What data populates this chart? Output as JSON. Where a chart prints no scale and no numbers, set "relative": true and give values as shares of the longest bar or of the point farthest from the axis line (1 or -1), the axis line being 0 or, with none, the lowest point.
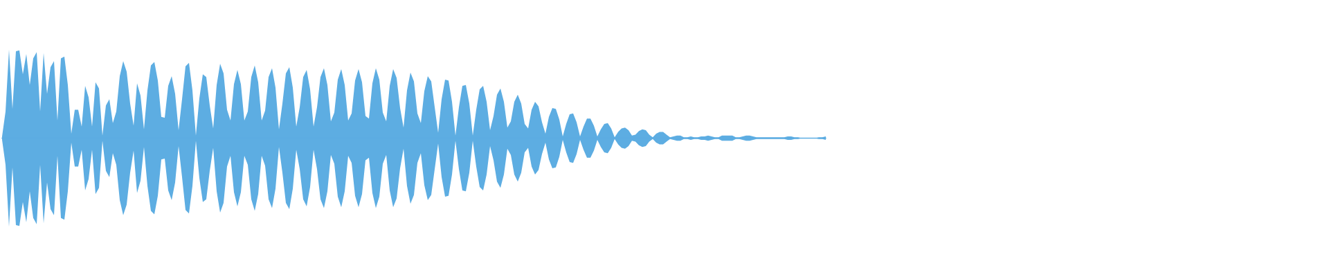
{
  "chart_data": {
    "type": "area",
    "relative": true,
    "categories": [
      null,
      null,
      null,
      null,
      null,
      null,
      null,
      null,
      null,
      null,
      null,
      null,
      null,
      null,
      null,
      null,
      null,
      null,
      null,
      null,
      null,
      null,
      null,
      null,
      null,
      null,
      null,
      null,
      null,
      null,
      null,
      null,
      null,
      null,
      null,
      null,
      null,
      null,
      null,
      null,
      null,
      null,
      null,
      null,
      null,
      null,
      null,
      null,
      null,
      null,
      null,
      null,
      null,
      null,
      null,
      null,
      null,
      null,
      null,
      null,
      null,
      null,
      null,
      null,
      null,
      null,
      null,
      null,
      null,
      null,
      null,
      null,
      null,
      null,
      null,
      null,
      null,
      null,
      null,
      null,
      null,
      null,
      null,
      null,
      null,
      null,
      null,
      null,
      null,
      null,
      null,
      null,
      null,
      null,
      null,
      null,
      null,
      null,
      null,
      null,
      null,
      null,
      null,
      null,
      null,
      null,
      null,
      null,
      null,
      null,
      null,
      null,
      null,
      null,
      null,
      null,
      null,
      null,
      null,
      null,
      null,
      null,
      null,
      null,
      null,
      null,
      null,
      null,
      null,
      null,
      null,
      null,
      null,
      null,
      null,
      null,
      null,
      null,
      null,
      null,
      null,
      null,
      null,
      null,
      null,
      null,
      null,
      null,
      null,
      null,
      null,
      null,
      null,
      null,
      null,
      null,
      null,
      null,
      null,
      null,
      null,
      null,
      null,
      null,
      null,
      null,
      null,
      null,
      null,
      null,
      null,
      null,
      null,
      null,
      null,
      null,
      null,
      null,
      null,
      null,
      null,
      null,
      null,
      null,
      null,
      null,
      null,
      null,
      null,
      null,
      null,
      null,
      null,
      null,
      null,
      null,
      null,
      null,
      null,
      null,
      null,
      null,
      null,
      null,
      null,
      null,
      null,
      null,
      null,
      null,
      null,
      null,
      null,
      null,
      null,
      null,
      null,
      null,
      null,
      null,
      null,
      null,
      null,
      null,
      null,
      null,
      null,
      null,
      null,
      null,
      null,
      null,
      null,
      null,
      null,
      null,
      null,
      null,
      null
    ],
    "series": [
      {
        "color": "#5dade2",
        "values": [
          0.02,
          0.3,
          1,
          0.33,
          0.98,
          0.99,
          0.72,
          0.95,
          0.6,
          0.9,
          0.97,
          0.3,
          0.96,
          0.5,
          0.8,
          0.87,
          0.2,
          0.9,
          0.92,
          0.6,
          0.05,
          0.32,
          0.32,
          0.13,
          0.59,
          0.46,
          0.13,
          0.63,
          0.56,
          0.03,
          0.37,
          0.44,
          0.17,
          0.3,
          0.7,
          0.87,
          0.75,
          0.39,
          0.14,
          0.62,
          0.48,
          0.1,
          0.54,
          0.82,
          0.86,
          0.65,
          0.24,
          0.23,
          0.59,
          0.7,
          0.5,
          0.09,
          0.44,
          0.81,
          0.85,
          0.54,
          0.03,
          0.45,
          0.72,
          0.69,
          0.37,
          0.11,
          0.6,
          0.84,
          0.73,
          0.32,
          0.2,
          0.61,
          0.77,
          0.61,
          0.2,
          0.3,
          0.69,
          0.82,
          0.63,
          0.2,
          0.31,
          0.69,
          0.79,
          0.57,
          0.1,
          0.39,
          0.73,
          0.8,
          0.57,
          0.13,
          0.35,
          0.69,
          0.77,
          0.55,
          0.13,
          0.35,
          0.69,
          0.79,
          0.6,
          0.19,
          0.29,
          0.66,
          0.78,
          0.6,
          0.2,
          0.28,
          0.65,
          0.78,
          0.63,
          0.25,
          0.22,
          0.62,
          0.79,
          0.66,
          0.29,
          0.19,
          0.59,
          0.78,
          0.68,
          0.34,
          0.12,
          0.54,
          0.74,
          0.64,
          0.28,
          0.17,
          0.53,
          0.7,
          0.64,
          0.35,
          0.06,
          0.44,
          0.66,
          0.65,
          0.41,
          0.03,
          0.35,
          0.59,
          0.6,
          0.39,
          0.03,
          0.32,
          0.55,
          0.59,
          0.41,
          0.09,
          0.25,
          0.49,
          0.56,
          0.41,
          0.12,
          0.19,
          0.41,
          0.49,
          0.39,
          0.16,
          0.11,
          0.32,
          0.41,
          0.36,
          0.18,
          0.05,
          0.24,
          0.34,
          0.33,
          0.21,
          0.02,
          0.16,
          0.27,
          0.28,
          0.18,
          0.02,
          0.13,
          0.22,
          0.22,
          0.14,
          0.02,
          0.1,
          0.16,
          0.17,
          0.11,
          0.01,
          0.07,
          0.11,
          0.12,
          0.09,
          0.03,
          0.04,
          0.08,
          0.1,
          0.09,
          0.04,
          0.01,
          0.05,
          0.07,
          0.07,
          0.04,
          0.01,
          0.02,
          0.03,
          0.03,
          0.01,
          0.01,
          0.02,
          0.01,
          0.01,
          0.02,
          0.02,
          0.03,
          0.02,
          0.01,
          0.01,
          0.03,
          0.03,
          0.03,
          0.03,
          0.01,
          0.01,
          0.02,
          0.03,
          0.03,
          0.02,
          0.01,
          0.01,
          0.01,
          0.01,
          0.01,
          0.01,
          0.01,
          0.01,
          0.01,
          0.02,
          0.02,
          0.01,
          0.01,
          0,
          0,
          0,
          0,
          0,
          0.01,
          0.01,
          0.02
        ]
      },
      {
        "color": "#5dade2",
        "values": [
          -0.02,
          -0.3,
          -1,
          -0.33,
          -0.98,
          -0.99,
          -0.72,
          -0.95,
          -0.6,
          -0.9,
          -0.97,
          -0.3,
          -0.96,
          -0.5,
          -0.8,
          -0.87,
          -0.2,
          -0.9,
          -0.92,
          -0.6,
          -0.05,
          -0.32,
          -0.32,
          -0.13,
          -0.59,
          -0.46,
          -0.13,
          -0.63,
          -0.56,
          -0.03,
          -0.37,
          -0.44,
          -0.17,
          -0.3,
          -0.7,
          -0.87,
          -0.75,
          -0.39,
          -0.14,
          -0.62,
          -0.48,
          -0.1,
          -0.54,
          -0.82,
          -0.86,
          -0.65,
          -0.24,
          -0.23,
          -0.59,
          -0.7,
          -0.5,
          -0.09,
          -0.44,
          -0.81,
          -0.85,
          -0.54,
          -0.03,
          -0.45,
          -0.72,
          -0.69,
          -0.37,
          -0.11,
          -0.6,
          -0.84,
          -0.73,
          -0.32,
          -0.2,
          -0.61,
          -0.77,
          -0.61,
          -0.2,
          -0.3,
          -0.69,
          -0.82,
          -0.63,
          -0.2,
          -0.31,
          -0.69,
          -0.79,
          -0.57,
          -0.1,
          -0.39,
          -0.73,
          -0.8,
          -0.57,
          -0.13,
          -0.35,
          -0.69,
          -0.77,
          -0.55,
          -0.13,
          -0.35,
          -0.69,
          -0.79,
          -0.6,
          -0.19,
          -0.29,
          -0.66,
          -0.78,
          -0.6,
          -0.2,
          -0.28,
          -0.65,
          -0.78,
          -0.63,
          -0.25,
          -0.22,
          -0.62,
          -0.79,
          -0.66,
          -0.29,
          -0.19,
          -0.59,
          -0.78,
          -0.68,
          -0.34,
          -0.12,
          -0.54,
          -0.74,
          -0.64,
          -0.28,
          -0.17,
          -0.53,
          -0.7,
          -0.64,
          -0.35,
          -0.06,
          -0.44,
          -0.66,
          -0.65,
          -0.41,
          -0.03,
          -0.35,
          -0.59,
          -0.6,
          -0.39,
          -0.03,
          -0.32,
          -0.55,
          -0.59,
          -0.41,
          -0.09,
          -0.25,
          -0.49,
          -0.56,
          -0.41,
          -0.12,
          -0.19,
          -0.41,
          -0.49,
          -0.39,
          -0.16,
          -0.11,
          -0.32,
          -0.41,
          -0.36,
          -0.18,
          -0.05,
          -0.24,
          -0.34,
          -0.33,
          -0.21,
          -0.02,
          -0.16,
          -0.27,
          -0.28,
          -0.18,
          -0.02,
          -0.13,
          -0.22,
          -0.22,
          -0.14,
          -0.02,
          -0.1,
          -0.16,
          -0.17,
          -0.11,
          -0.01,
          -0.07,
          -0.11,
          -0.12,
          -0.09,
          -0.03,
          -0.04,
          -0.08,
          -0.1,
          -0.09,
          -0.04,
          -0.01,
          -0.05,
          -0.07,
          -0.07,
          -0.04,
          -0.01,
          -0.02,
          -0.03,
          -0.03,
          -0.01,
          -0.01,
          -0.02,
          -0.01,
          -0.01,
          -0.02,
          -0.02,
          -0.03,
          -0.02,
          -0.01,
          -0.01,
          -0.03,
          -0.03,
          -0.03,
          -0.03,
          -0.01,
          -0.01,
          -0.02,
          -0.03,
          -0.03,
          -0.02,
          -0.01,
          -0.01,
          -0.01,
          -0.01,
          -0.01,
          -0.01,
          -0.01,
          -0.01,
          -0.01,
          -0.02,
          -0.02,
          -0.01,
          -0.01,
          0,
          0,
          0,
          0,
          0,
          -0.01,
          -0.01,
          -0.02
        ]
      }
    ]
  }
}
